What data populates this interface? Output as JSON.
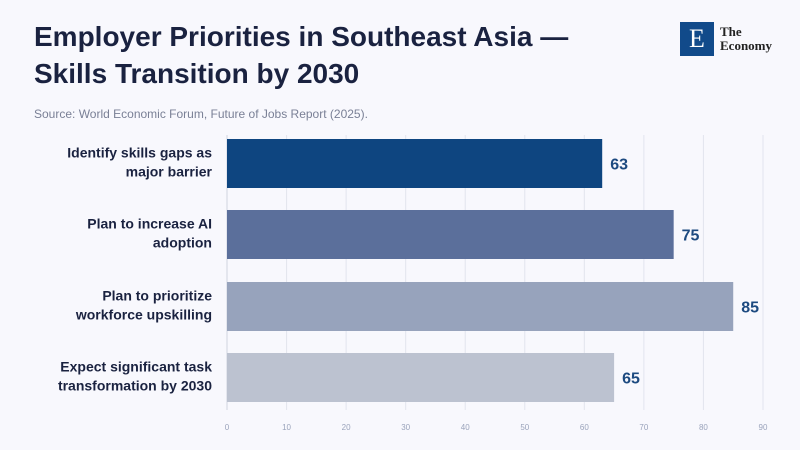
{
  "header": {
    "title_line1": "Employer Priorities in Southeast Asia —",
    "title_line2": "Skills Transition by 2030",
    "source": "Source: World Economic Forum, Future of Jobs Report (2025).",
    "logo_letter": "E",
    "logo_line1": "The",
    "logo_line2": "Economy"
  },
  "chart_data": {
    "type": "bar",
    "orientation": "horizontal",
    "title": "Employer Priorities in Southeast Asia — Skills Transition by 2030",
    "categories": [
      [
        "Identify skills gaps as",
        "major barrier"
      ],
      [
        "Plan to increase AI",
        "adoption"
      ],
      [
        "Plan to prioritize",
        "workforce upskilling"
      ],
      [
        "Expect significant task",
        "transformation by 2030"
      ]
    ],
    "values": [
      63,
      75,
      85,
      65
    ],
    "colors": [
      "#0e4580",
      "#5b6f9b",
      "#97a3bc",
      "#bcc2d0"
    ],
    "xlim": [
      0,
      90
    ],
    "ticks": [
      0,
      10,
      20,
      30,
      40,
      50,
      60,
      70,
      80,
      90
    ],
    "grid": true,
    "xlabel": "",
    "ylabel": ""
  }
}
